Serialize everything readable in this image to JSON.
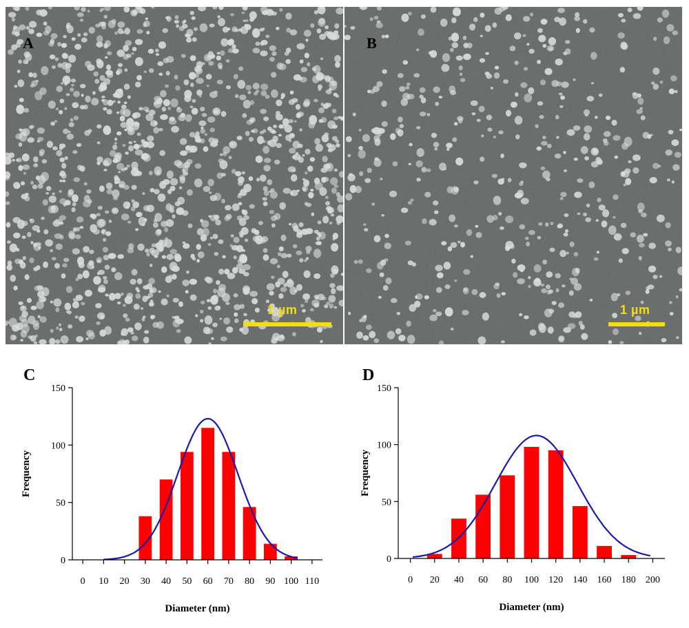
{
  "panels": {
    "a": {
      "letter": "A",
      "scale_label": "1 µm"
    },
    "b": {
      "letter": "B",
      "scale_label": "1 µm"
    },
    "c": {
      "letter": "C"
    },
    "d": {
      "letter": "D"
    }
  },
  "colors": {
    "bar": "#ff0000",
    "curve": "#1a1aaa",
    "scale": "#f4e000",
    "sem_bg": "#5a5e5c",
    "particle": "#d9dcda"
  },
  "chart_data": [
    {
      "panel": "C",
      "type": "bar",
      "x_ticks": [
        0,
        10,
        20,
        30,
        40,
        50,
        60,
        70,
        80,
        90,
        100,
        110
      ],
      "y_ticks": [
        0,
        50,
        100,
        150
      ],
      "bins_center": [
        30,
        40,
        50,
        60,
        70,
        80,
        90,
        100
      ],
      "values": [
        38,
        70,
        94,
        115,
        94,
        46,
        14,
        3
      ],
      "fit_curve": {
        "type": "normal",
        "mean": 60,
        "sd": 14.5,
        "peak": 123,
        "x_range": [
          10,
          103
        ]
      },
      "xlabel": "Diameter (nm)",
      "ylabel": "Frequency",
      "xlim": [
        -5,
        115
      ],
      "ylim": [
        0,
        150
      ],
      "grid": false
    },
    {
      "panel": "D",
      "type": "bar",
      "x_ticks": [
        0,
        20,
        40,
        60,
        80,
        100,
        120,
        140,
        160,
        180,
        200
      ],
      "y_ticks": [
        0,
        50,
        100,
        150
      ],
      "bins_center": [
        20,
        40,
        60,
        80,
        100,
        120,
        140,
        160,
        180
      ],
      "values": [
        4,
        35,
        56,
        73,
        98,
        95,
        46,
        11,
        3
      ],
      "fit_curve": {
        "type": "normal",
        "mean": 104,
        "sd": 34,
        "peak": 108,
        "x_range": [
          2,
          198
        ]
      },
      "xlabel": "Diameter (nm)",
      "ylabel": "Frequency",
      "xlim": [
        -10,
        210
      ],
      "ylim": [
        0,
        150
      ],
      "grid": false
    }
  ]
}
